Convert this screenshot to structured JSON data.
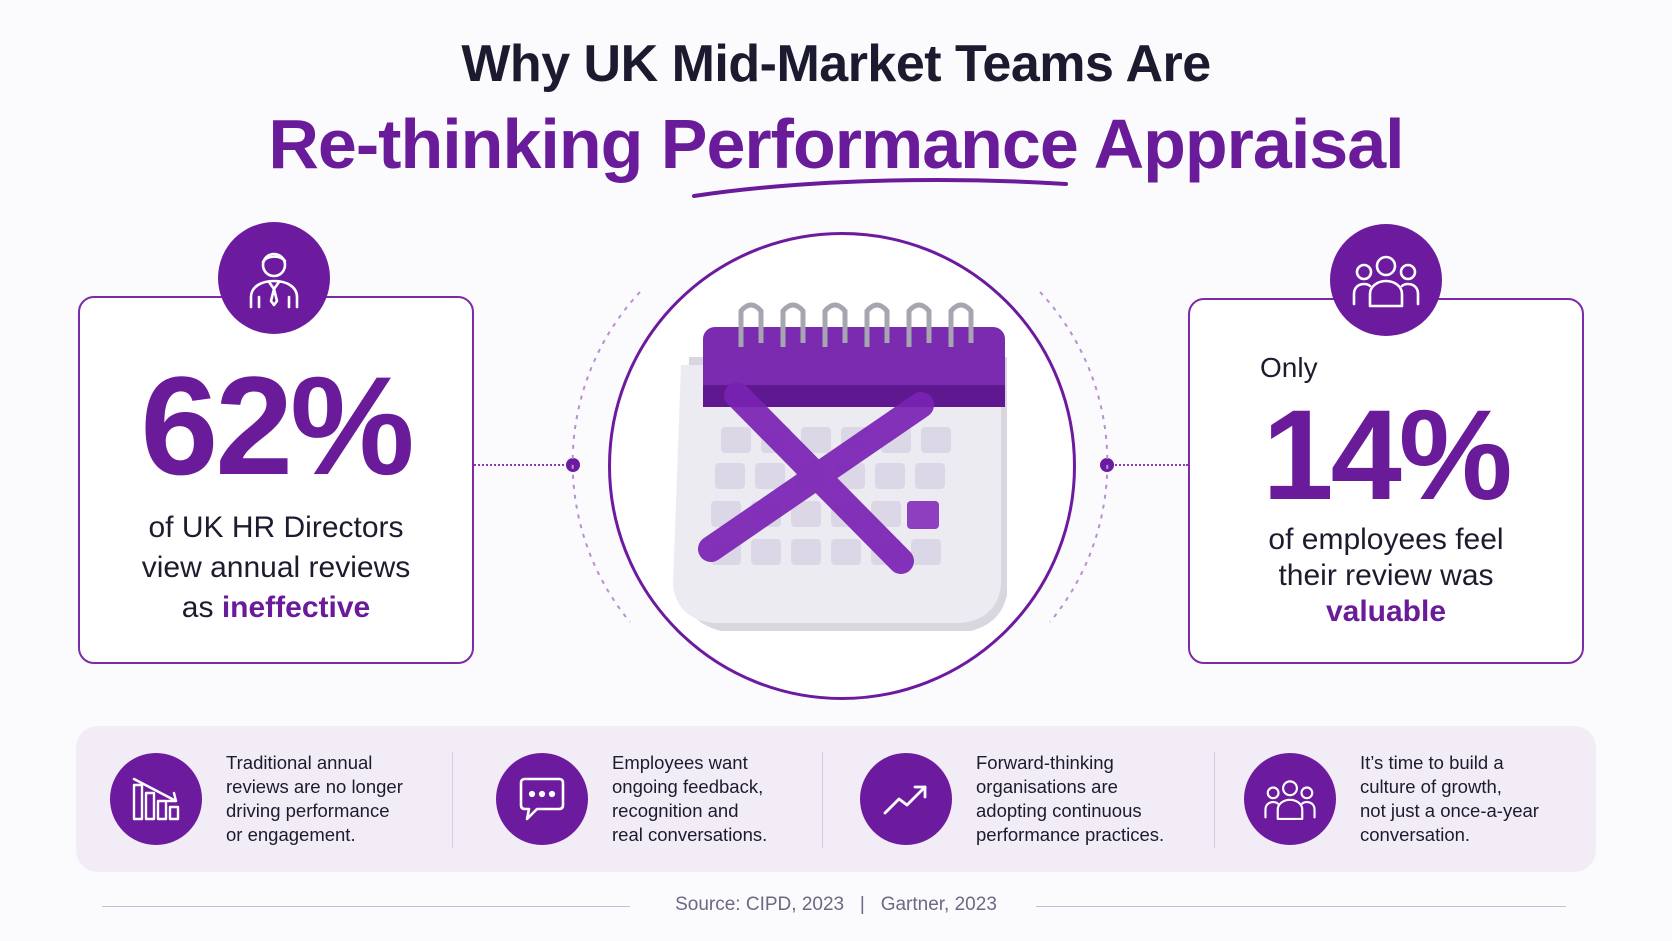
{
  "header": {
    "title_line1": "Why UK Mid-Market Teams Are",
    "title_line2": "Re-thinking Performance Appraisal"
  },
  "left_stat": {
    "icon": "person-icon",
    "value": "62%",
    "text_line1": "of UK HR Directors",
    "text_line2": "view annual reviews",
    "text_line3_prefix": "as ",
    "text_line3_accent": "ineffective"
  },
  "center": {
    "icon": "crossed-out-calendar-icon"
  },
  "right_stat": {
    "icon": "group-icon",
    "prefix": "Only",
    "value": "14%",
    "text_line1": "of employees feel",
    "text_line2": "their review was",
    "text_line3_accent": "valuable"
  },
  "features": [
    {
      "icon": "declining-bar-chart-icon",
      "text": "Traditional annual\nreviews are no longer\ndriving performance\nor engagement."
    },
    {
      "icon": "chat-bubble-icon",
      "text": "Employees want\nongoing feedback,\nrecognition and\nreal conversations."
    },
    {
      "icon": "trending-up-icon",
      "text": "Forward-thinking\norganisations are\nadopting continuous\nperformance practices."
    },
    {
      "icon": "team-icon",
      "text": "It’s time to build a\nculture of growth,\nnot just a once-a-year\nconversation."
    }
  ],
  "footer": {
    "source_text": "Source: CIPD, 2023   |   Gartner, 2023"
  },
  "colors": {
    "accent": "#6a1b9a",
    "accent_dark": "#6d1b9e",
    "text": "#1e1b2e",
    "band": "#f1ecf6"
  }
}
